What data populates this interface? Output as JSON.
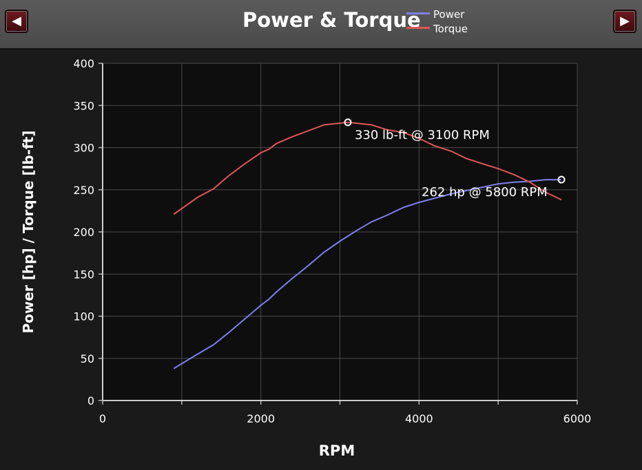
{
  "header": {
    "prev_label": "◀",
    "next_label": "▶",
    "title": "Power & Torque"
  },
  "colors": {
    "power": "#8080f0",
    "torque": "#e25757",
    "background": "#0e0e0e",
    "grid": "#4a4a4a"
  },
  "chart_data": {
    "type": "line",
    "title": "Power & Torque",
    "xlabel": "RPM",
    "ylabel": "Power [hp] / Torque [lb-ft]",
    "xlim": [
      0,
      6000
    ],
    "ylim": [
      0,
      400
    ],
    "xticks": [
      0,
      2000,
      4000,
      6000
    ],
    "yticks": [
      0,
      50,
      100,
      150,
      200,
      250,
      300,
      350,
      400
    ],
    "grid": true,
    "legend_position": "top",
    "series": [
      {
        "name": "Power",
        "color": "#8080f0",
        "x": [
          900,
          1200,
          1400,
          1600,
          1800,
          2000,
          2100,
          2200,
          2400,
          2600,
          2800,
          3000,
          3100,
          3200,
          3400,
          3600,
          3800,
          4000,
          4200,
          4400,
          4600,
          4800,
          5000,
          5200,
          5400,
          5600,
          5800
        ],
        "y": [
          38,
          55,
          66,
          81,
          97,
          113,
          120,
          129,
          145,
          160,
          176,
          189,
          195,
          201,
          212,
          220,
          229,
          235,
          240,
          245,
          249,
          253,
          257,
          259,
          260,
          262,
          262
        ]
      },
      {
        "name": "Torque",
        "color": "#e25757",
        "x": [
          900,
          1200,
          1400,
          1600,
          1800,
          2000,
          2100,
          2200,
          2400,
          2600,
          2800,
          3000,
          3100,
          3200,
          3400,
          3600,
          3800,
          4000,
          4200,
          4400,
          4600,
          4800,
          5000,
          5200,
          5400,
          5600,
          5800
        ],
        "y": [
          221,
          241,
          251,
          267,
          281,
          294,
          298,
          305,
          313,
          320,
          327,
          329,
          330,
          329,
          327,
          321,
          318,
          311,
          302,
          296,
          287,
          281,
          275,
          268,
          259,
          247,
          238
        ]
      }
    ],
    "annotations": [
      {
        "text": "330 lb-ft @ 3100 RPM",
        "x": 3100,
        "y": 330,
        "series": "Torque"
      },
      {
        "text": "262 hp @ 5800 RPM",
        "x": 5800,
        "y": 262,
        "series": "Power"
      }
    ]
  }
}
